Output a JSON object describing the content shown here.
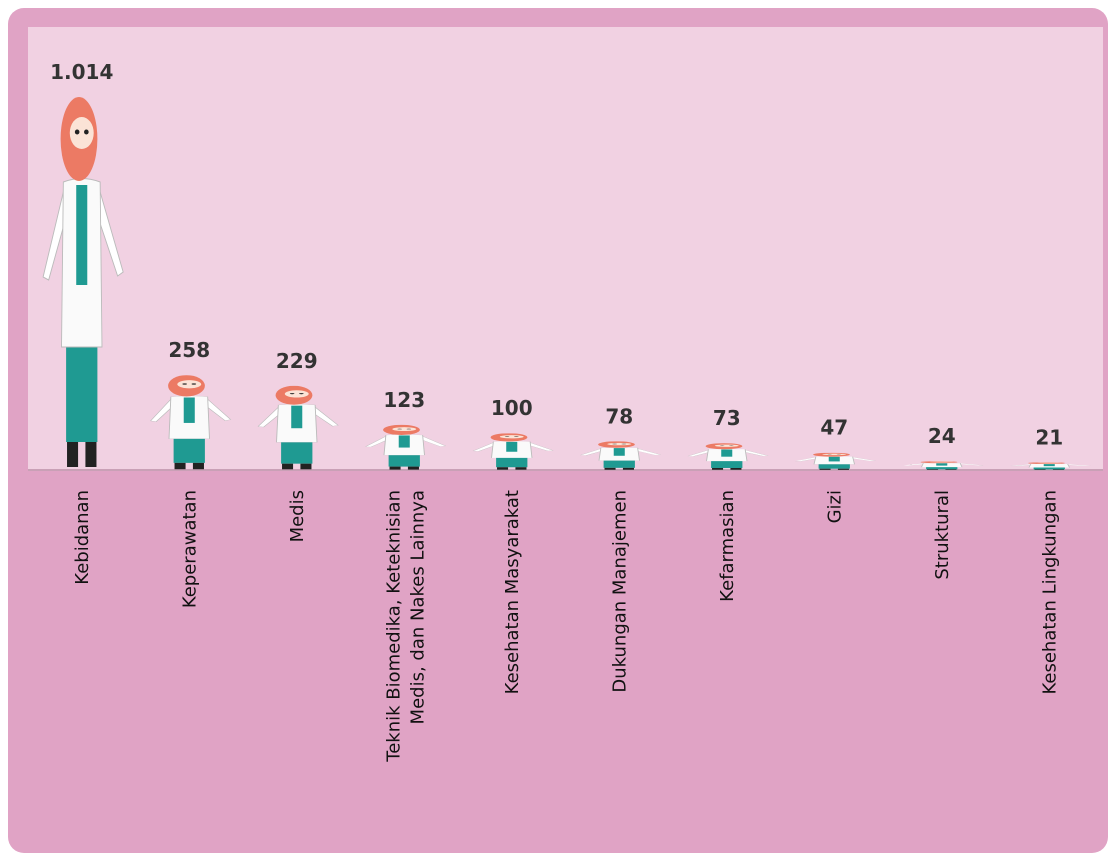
{
  "chart_data": {
    "type": "pictogram",
    "categories": [
      "Kebidanan",
      "Keperawatan",
      "Medis",
      "Teknik Biomedika, Keteknisian\nMedis, dan Nakes Lainnya",
      "Kesehatan Masyarakat",
      "Dukungan Manajemen",
      "Kefarmasian",
      "Gizi",
      "Struktural",
      "Kesehatan Lingkungan"
    ],
    "values": [
      1014,
      258,
      229,
      123,
      100,
      78,
      73,
      47,
      24,
      21
    ],
    "value_labels": [
      "1.014",
      "258",
      "229",
      "123",
      "100",
      "78",
      "73",
      "47",
      "24",
      "21"
    ]
  }
}
